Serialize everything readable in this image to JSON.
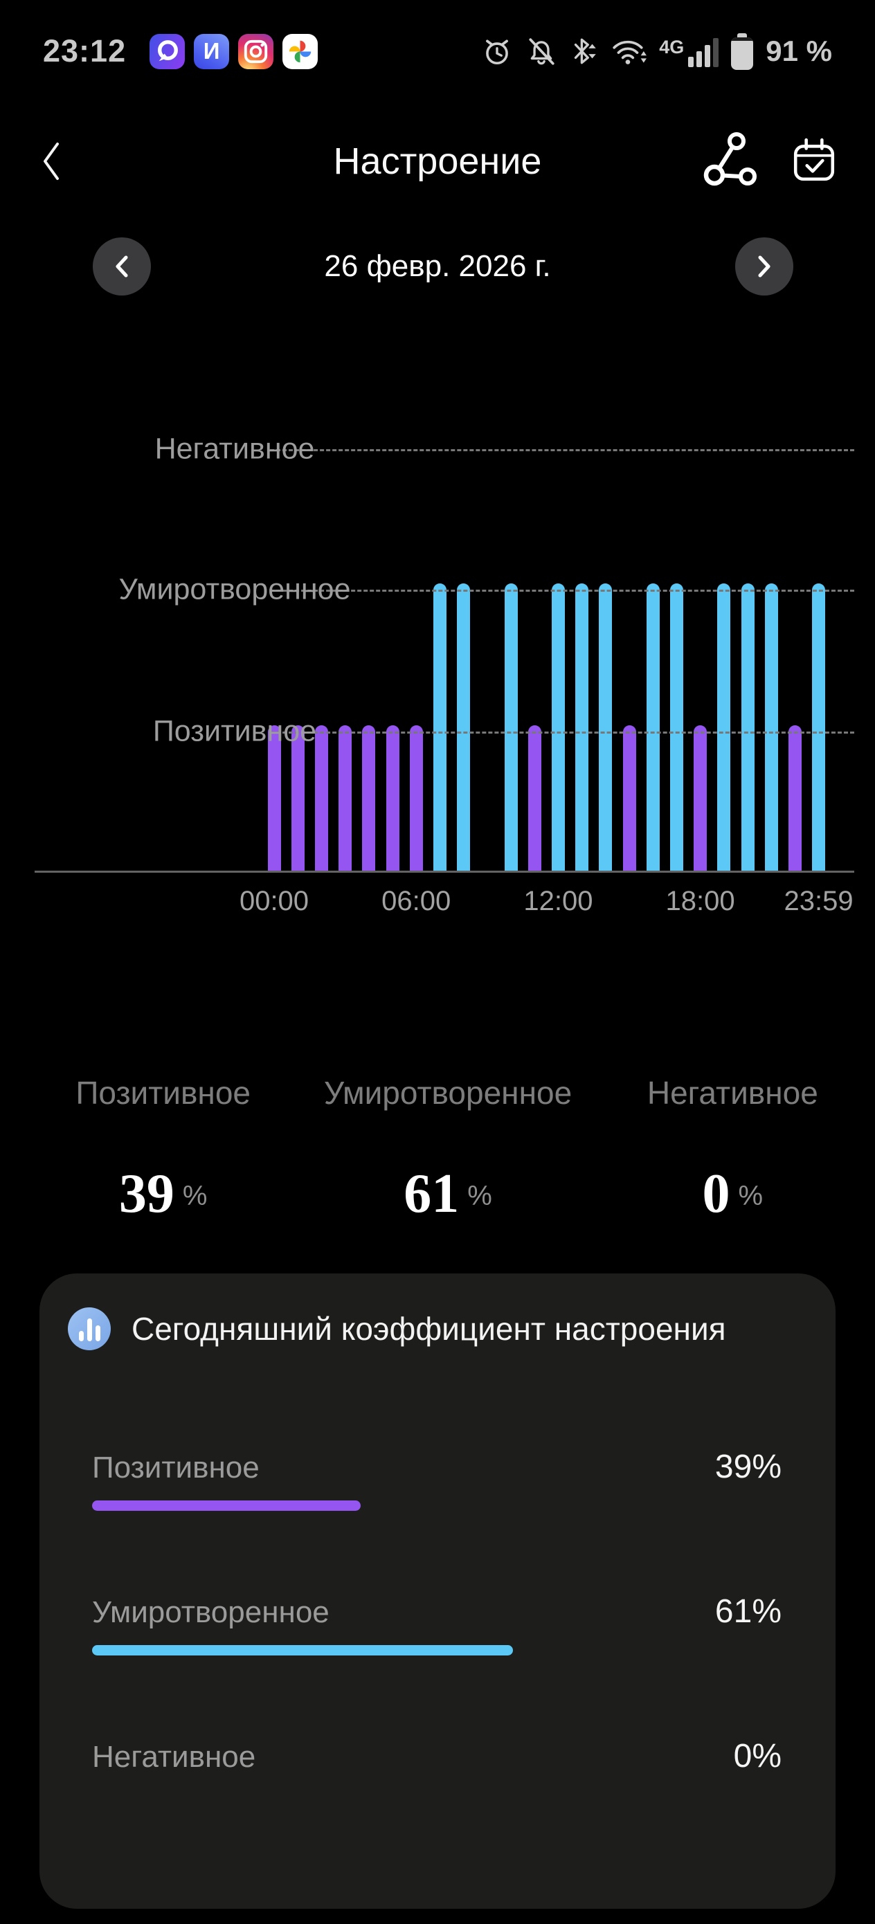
{
  "status_bar": {
    "time": "23:12",
    "app_icons": [
      {
        "name": "chat-app-icon"
      },
      {
        "name": "i-app-icon",
        "letter": "И"
      },
      {
        "name": "instagram-app-icon"
      },
      {
        "name": "google-photos-app-icon"
      }
    ],
    "network_label": "4G",
    "battery_text": "91 %"
  },
  "header": {
    "title": "Настроение"
  },
  "date_nav": {
    "date": "26 февр. 2026 г."
  },
  "chart_data": {
    "type": "bar",
    "y_levels": [
      "Негативное",
      "Умиротворенное",
      "Позитивное"
    ],
    "x_ticks": [
      {
        "label": "00:00",
        "hour": 0
      },
      {
        "label": "06:00",
        "hour": 6
      },
      {
        "label": "12:00",
        "hour": 12
      },
      {
        "label": "18:00",
        "hour": 18
      },
      {
        "label": "23:59",
        "hour": 23
      }
    ],
    "x_range_hours": [
      0,
      24
    ],
    "grid": "dashed-horizontal",
    "colors": {
      "Позитивное": "#9455f1",
      "Умиротворенное": "#5bc8f5"
    },
    "bars": [
      {
        "hour": 0,
        "mood": "Позитивное"
      },
      {
        "hour": 1,
        "mood": "Позитивное"
      },
      {
        "hour": 2,
        "mood": "Позитивное"
      },
      {
        "hour": 3,
        "mood": "Позитивное"
      },
      {
        "hour": 4,
        "mood": "Позитивное"
      },
      {
        "hour": 5,
        "mood": "Позитивное"
      },
      {
        "hour": 6,
        "mood": "Позитивное"
      },
      {
        "hour": 7,
        "mood": "Умиротворенное"
      },
      {
        "hour": 8,
        "mood": "Умиротворенное"
      },
      {
        "hour": 10,
        "mood": "Умиротворенное"
      },
      {
        "hour": 11,
        "mood": "Позитивное"
      },
      {
        "hour": 12,
        "mood": "Умиротворенное"
      },
      {
        "hour": 13,
        "mood": "Умиротворенное"
      },
      {
        "hour": 14,
        "mood": "Умиротворенное"
      },
      {
        "hour": 15,
        "mood": "Позитивное"
      },
      {
        "hour": 16,
        "mood": "Умиротворенное"
      },
      {
        "hour": 17,
        "mood": "Умиротворенное"
      },
      {
        "hour": 18,
        "mood": "Позитивное"
      },
      {
        "hour": 19,
        "mood": "Умиротворенное"
      },
      {
        "hour": 20,
        "mood": "Умиротворенное"
      },
      {
        "hour": 21,
        "mood": "Умиротворенное"
      },
      {
        "hour": 22,
        "mood": "Позитивное"
      },
      {
        "hour": 23,
        "mood": "Умиротворенное"
      }
    ]
  },
  "summary": {
    "items": [
      {
        "label": "Позитивное",
        "value": "39",
        "unit": "%"
      },
      {
        "label": "Умиротворенное",
        "value": "61",
        "unit": "%"
      },
      {
        "label": "Негативное",
        "value": "0",
        "unit": "%"
      }
    ]
  },
  "mood_card": {
    "title": "Сегодняшний коэффициент настроения",
    "rows": [
      {
        "label": "Позитивное",
        "percent": "39%",
        "value": 39,
        "color": "#9455f1"
      },
      {
        "label": "Умиротворенное",
        "percent": "61%",
        "value": 61,
        "color": "#5bc8f5"
      },
      {
        "label": "Негативное",
        "percent": "0%",
        "value": 0,
        "color": null
      }
    ]
  }
}
